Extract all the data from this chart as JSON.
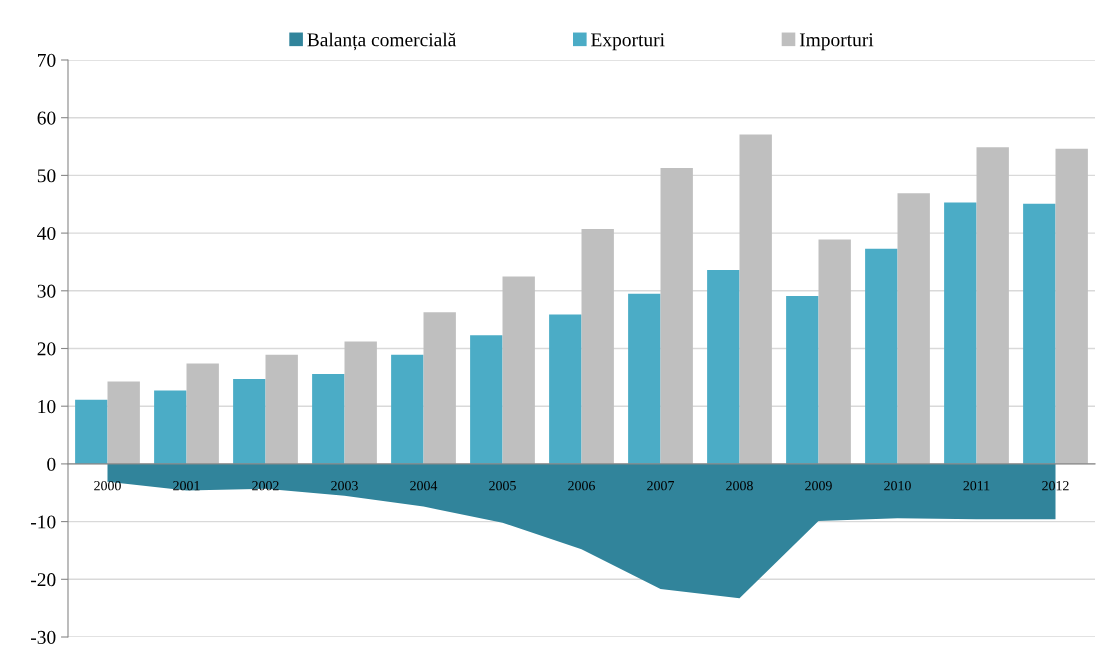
{
  "chart_data": {
    "type": "bar",
    "categories": [
      "2000",
      "2001",
      "2002",
      "2003",
      "2004",
      "2005",
      "2006",
      "2007",
      "2008",
      "2009",
      "2010",
      "2011",
      "2012"
    ],
    "series": [
      {
        "name": "Balanța comercială",
        "type": "area",
        "color": "#31849b",
        "values": [
          -3.1,
          -4.6,
          -4.3,
          -5.5,
          -7.4,
          -10.2,
          -14.8,
          -21.7,
          -23.3,
          -9.9,
          -9.4,
          -9.6,
          -9.6
        ]
      },
      {
        "name": "Exporturi",
        "type": "bar",
        "color": "#4bacc6",
        "values": [
          11.1,
          12.7,
          14.7,
          15.6,
          18.9,
          22.3,
          25.9,
          29.5,
          33.6,
          29.1,
          37.3,
          45.3,
          45.1
        ]
      },
      {
        "name": "Importuri",
        "type": "bar",
        "color": "#bfbfbf",
        "values": [
          14.3,
          17.4,
          18.9,
          21.2,
          26.3,
          32.5,
          40.7,
          51.3,
          57.1,
          38.9,
          46.9,
          54.9,
          54.6
        ]
      }
    ],
    "ylim": [
      -30,
      70
    ],
    "yticks": [
      -30,
      -20,
      -10,
      0,
      10,
      20,
      30,
      40,
      50,
      60,
      70
    ],
    "grid": "y",
    "legend": "top"
  }
}
